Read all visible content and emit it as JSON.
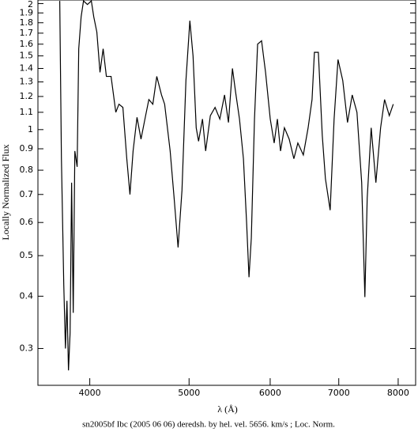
{
  "chart_data": {
    "type": "line",
    "caption": "sn2005bf Ibc (2005 06 06) deredsh. by hel. vel.  5656. km/s ;  Loc. Norm.",
    "x_label": "λ (Å)",
    "y_label": "Locally Normalized Flux",
    "x_log": true,
    "y_log": true,
    "color": "#000000",
    "xlim": [
      3560,
      8320
    ],
    "ylim": [
      0.245,
      2.04
    ],
    "xticks": [
      4000,
      5000,
      6000,
      7000,
      8000
    ],
    "yticks": [
      0.3,
      0.4,
      0.5,
      0.6,
      0.7,
      0.8,
      0.9,
      1,
      1.1,
      1.2,
      1.3,
      1.4,
      1.5,
      1.6,
      1.7,
      1.8,
      1.9,
      2
    ],
    "x": [
      3739,
      3753,
      3773,
      3787,
      3800,
      3813,
      3827,
      3840,
      3854,
      3868,
      3888,
      3902,
      3923,
      3944,
      3979,
      4014,
      4036,
      4064,
      4093,
      4122,
      4152,
      4196,
      4241,
      4271,
      4309,
      4347,
      4378,
      4409,
      4448,
      4488,
      4528,
      4568,
      4609,
      4650,
      4700,
      4733,
      4792,
      4835,
      4878,
      4921,
      4965,
      5009,
      5045,
      5081,
      5108,
      5153,
      5190,
      5245,
      5301,
      5358,
      5415,
      5463,
      5512,
      5551,
      5600,
      5650,
      5690,
      5721,
      5751,
      5792,
      5833,
      5885,
      5938,
      6001,
      6054,
      6098,
      6141,
      6195,
      6262,
      6328,
      6385,
      6464,
      6534,
      6592,
      6627,
      6686,
      6745,
      6793,
      6866,
      6927,
      6988,
      7063,
      7139,
      7215,
      7292,
      7370,
      7423,
      7462,
      7529,
      7609,
      7690,
      7759,
      7842,
      7912
    ],
    "values": [
      2.03,
      0.852,
      0.425,
      0.3,
      0.39,
      0.266,
      0.327,
      0.747,
      0.365,
      0.889,
      0.815,
      1.56,
      1.86,
      2.03,
      1.99,
      2.03,
      1.86,
      1.71,
      1.37,
      1.56,
      1.34,
      1.34,
      1.1,
      1.15,
      1.13,
      0.852,
      0.7,
      0.889,
      1.07,
      0.949,
      1.06,
      1.18,
      1.15,
      1.34,
      1.21,
      1.15,
      0.889,
      0.686,
      0.523,
      0.716,
      1.31,
      1.82,
      1.5,
      1.01,
      0.938,
      1.06,
      0.889,
      1.08,
      1.13,
      1.06,
      1.21,
      1.04,
      1.4,
      1.23,
      1.06,
      0.852,
      0.601,
      0.444,
      0.551,
      1.06,
      1.6,
      1.63,
      1.37,
      1.06,
      0.929,
      1.06,
      0.889,
      1.01,
      0.949,
      0.852,
      0.929,
      0.87,
      1.01,
      1.18,
      1.53,
      1.53,
      0.97,
      0.764,
      0.642,
      1.06,
      1.47,
      1.31,
      1.04,
      1.21,
      1.1,
      0.747,
      0.398,
      0.686,
      1.01,
      0.747,
      1.01,
      1.18,
      1.08,
      1.15
    ]
  }
}
